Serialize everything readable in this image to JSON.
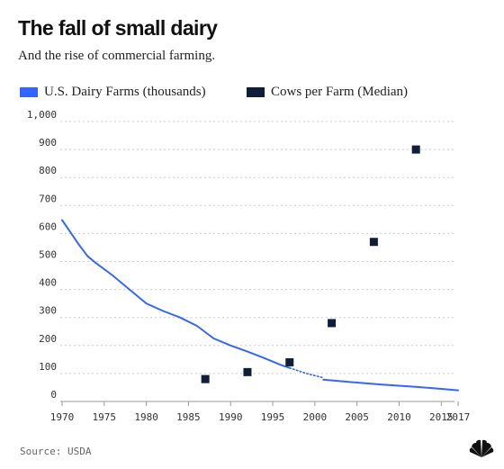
{
  "title": "The fall of small dairy",
  "subtitle": "And the rise of commercial farming.",
  "source": "Source: USDA",
  "colors": {
    "farms_line": "#3366ff",
    "cows_marker": "#0f1f3a",
    "grid": "#cccccc",
    "text": "#222222"
  },
  "chart_data": {
    "type": "line",
    "title": "The fall of small dairy",
    "subtitle": "And the rise of commercial farming.",
    "xlabel": "",
    "ylabel": "",
    "xlim": [
      1970,
      2017
    ],
    "ylim": [
      0,
      1000
    ],
    "x_ticks": [
      "1970",
      "1975",
      "1980",
      "1985",
      "1990",
      "1995",
      "2000",
      "2005",
      "2010",
      "2015",
      "2017"
    ],
    "x_tick_values": [
      1970,
      1975,
      1980,
      1985,
      1990,
      1995,
      2000,
      2005,
      2010,
      2015,
      2017
    ],
    "y_ticks": [
      "0",
      "100",
      "200",
      "300",
      "400",
      "500",
      "600",
      "700",
      "800",
      "900",
      "1,000"
    ],
    "y_tick_values": [
      0,
      100,
      200,
      300,
      400,
      500,
      600,
      700,
      800,
      900,
      1000
    ],
    "grid": true,
    "legend_position": "top-left",
    "series": [
      {
        "name": "U.S. Dairy Farms (thousands)",
        "type": "line",
        "color": "#3366ff",
        "x": [
          1970,
          1972,
          1973,
          1974,
          1976,
          1978,
          1980,
          1982,
          1984,
          1986,
          1988,
          1990,
          1992,
          1994,
          1996,
          1997
        ],
        "values": [
          648,
          560,
          520,
          495,
          450,
          400,
          350,
          323,
          300,
          270,
          225,
          200,
          178,
          155,
          130,
          120
        ]
      },
      {
        "name": "U.S. Dairy Farms (thousands)",
        "type": "dotted",
        "color": "#3366ff",
        "x": [
          1997,
          1999,
          2001
        ],
        "values": [
          120,
          100,
          85
        ]
      },
      {
        "name": "U.S. Dairy Farms (thousands)",
        "type": "line",
        "color": "#3366ff",
        "x": [
          2001,
          2004,
          2008,
          2012,
          2015,
          2017
        ],
        "values": [
          78,
          70,
          60,
          52,
          45,
          40
        ]
      },
      {
        "name": "Cows per Farm (Median)",
        "type": "scatter",
        "color": "#0f1f3a",
        "x": [
          1987,
          1992,
          1997,
          2002,
          2007,
          2012
        ],
        "values": [
          80,
          105,
          140,
          280,
          570,
          900
        ]
      }
    ]
  },
  "legend": [
    {
      "label": "U.S. Dairy Farms (thousands)",
      "color": "#3366ff"
    },
    {
      "label": "Cows per Farm (Median)",
      "color": "#0f1f3a"
    }
  ]
}
